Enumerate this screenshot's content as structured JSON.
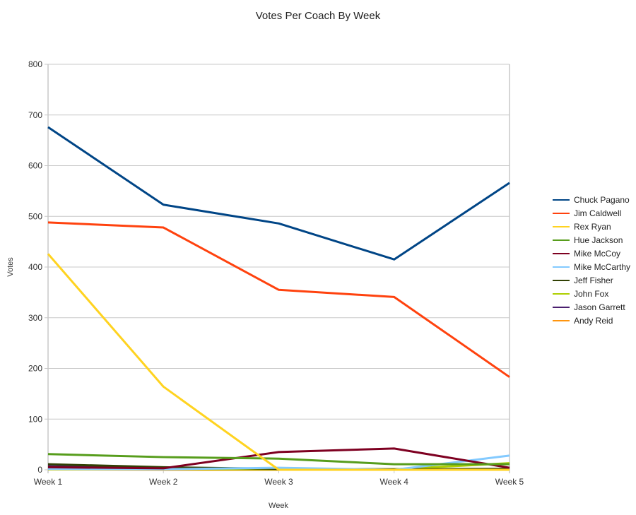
{
  "chart_data": {
    "type": "line",
    "title": "Votes Per Coach By Week",
    "xlabel": "Week",
    "ylabel": "Votes",
    "categories": [
      "Week 1",
      "Week 2",
      "Week 3",
      "Week 4",
      "Week 5"
    ],
    "ylim": [
      0,
      800
    ],
    "yticks": [
      0,
      100,
      200,
      300,
      400,
      500,
      600,
      700,
      800
    ],
    "grid": true,
    "legend_position": "right",
    "series": [
      {
        "name": "Chuck Pagano",
        "color": "#004586",
        "values": [
          676,
          523,
          486,
          415,
          566
        ]
      },
      {
        "name": "Jim Caldwell",
        "color": "#ff420e",
        "values": [
          488,
          478,
          355,
          341,
          183
        ]
      },
      {
        "name": "Rex Ryan",
        "color": "#ffd320",
        "values": [
          426,
          164,
          0,
          0,
          0
        ]
      },
      {
        "name": "Hue Jackson",
        "color": "#579d1c",
        "values": [
          31,
          25,
          22,
          11,
          11
        ]
      },
      {
        "name": "Mike McCoy",
        "color": "#7e0021",
        "values": [
          5,
          3,
          35,
          42,
          4
        ]
      },
      {
        "name": "Mike McCarthy",
        "color": "#83caff",
        "values": [
          2,
          1,
          4,
          0,
          28
        ]
      },
      {
        "name": "Jeff Fisher",
        "color": "#314004",
        "values": [
          11,
          5,
          2,
          1,
          2
        ]
      },
      {
        "name": "John Fox",
        "color": "#aecf00",
        "values": [
          1,
          1,
          1,
          1,
          13
        ]
      },
      {
        "name": "Jason Garrett",
        "color": "#4b1f6f",
        "values": [
          7,
          2,
          1,
          0,
          1
        ]
      },
      {
        "name": "Andy Reid",
        "color": "#ff950e",
        "values": [
          1,
          0,
          0,
          0,
          0
        ]
      }
    ]
  }
}
